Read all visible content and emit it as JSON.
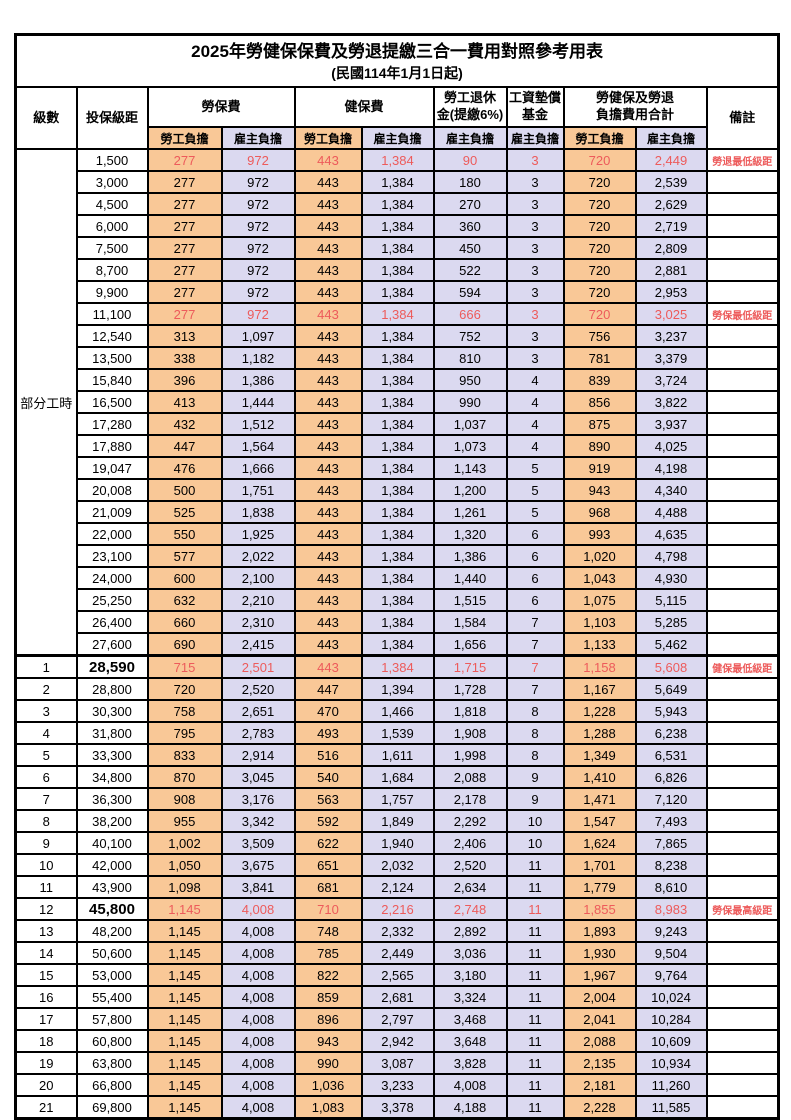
{
  "title": "2025年勞健保保費及勞退提繳三合一費用對照參考用表",
  "subtitle": "(民國114年1月1日起)",
  "colors": {
    "employee_cell_bg": "#F9C897",
    "employer_cell_bg": "#DBD9F0",
    "highlight_text": "#ED5B5B",
    "border": "#000000",
    "background": "#FFFFFF"
  },
  "header": {
    "level": "級數",
    "bracket": "投保級距",
    "labor_insurance": "勞保費",
    "health_insurance": "健保費",
    "pension_line1": "勞工退休",
    "pension_line2": "金(提繳6%)",
    "wage_fund_line1": "工資墊償",
    "wage_fund_line2": "基金",
    "total_line1": "勞健保及勞退",
    "total_line2": "負擔費用合計",
    "remark": "備註",
    "employee_burden": "勞工負擔",
    "employer_burden": "雇主負擔"
  },
  "part_time_label": "部分工時",
  "part_time_row_count": 23,
  "rows": [
    {
      "level": "",
      "bracket": "1,500",
      "labor_emp": "277",
      "labor_er": "972",
      "health_emp": "443",
      "health_er": "1,384",
      "pension_er": "90",
      "fund_er": "3",
      "total_emp": "720",
      "total_er": "2,449",
      "remark": "勞退最低級距",
      "highlight": true,
      "bracket_bold": false
    },
    {
      "level": "",
      "bracket": "3,000",
      "labor_emp": "277",
      "labor_er": "972",
      "health_emp": "443",
      "health_er": "1,384",
      "pension_er": "180",
      "fund_er": "3",
      "total_emp": "720",
      "total_er": "2,539",
      "remark": "",
      "highlight": false,
      "bracket_bold": false
    },
    {
      "level": "",
      "bracket": "4,500",
      "labor_emp": "277",
      "labor_er": "972",
      "health_emp": "443",
      "health_er": "1,384",
      "pension_er": "270",
      "fund_er": "3",
      "total_emp": "720",
      "total_er": "2,629",
      "remark": "",
      "highlight": false,
      "bracket_bold": false
    },
    {
      "level": "",
      "bracket": "6,000",
      "labor_emp": "277",
      "labor_er": "972",
      "health_emp": "443",
      "health_er": "1,384",
      "pension_er": "360",
      "fund_er": "3",
      "total_emp": "720",
      "total_er": "2,719",
      "remark": "",
      "highlight": false,
      "bracket_bold": false
    },
    {
      "level": "",
      "bracket": "7,500",
      "labor_emp": "277",
      "labor_er": "972",
      "health_emp": "443",
      "health_er": "1,384",
      "pension_er": "450",
      "fund_er": "3",
      "total_emp": "720",
      "total_er": "2,809",
      "remark": "",
      "highlight": false,
      "bracket_bold": false
    },
    {
      "level": "",
      "bracket": "8,700",
      "labor_emp": "277",
      "labor_er": "972",
      "health_emp": "443",
      "health_er": "1,384",
      "pension_er": "522",
      "fund_er": "3",
      "total_emp": "720",
      "total_er": "2,881",
      "remark": "",
      "highlight": false,
      "bracket_bold": false
    },
    {
      "level": "",
      "bracket": "9,900",
      "labor_emp": "277",
      "labor_er": "972",
      "health_emp": "443",
      "health_er": "1,384",
      "pension_er": "594",
      "fund_er": "3",
      "total_emp": "720",
      "total_er": "2,953",
      "remark": "",
      "highlight": false,
      "bracket_bold": false
    },
    {
      "level": "",
      "bracket": "11,100",
      "labor_emp": "277",
      "labor_er": "972",
      "health_emp": "443",
      "health_er": "1,384",
      "pension_er": "666",
      "fund_er": "3",
      "total_emp": "720",
      "total_er": "3,025",
      "remark": "勞保最低級距",
      "highlight": true,
      "bracket_bold": false
    },
    {
      "level": "",
      "bracket": "12,540",
      "labor_emp": "313",
      "labor_er": "1,097",
      "health_emp": "443",
      "health_er": "1,384",
      "pension_er": "752",
      "fund_er": "3",
      "total_emp": "756",
      "total_er": "3,237",
      "remark": "",
      "highlight": false,
      "bracket_bold": false
    },
    {
      "level": "",
      "bracket": "13,500",
      "labor_emp": "338",
      "labor_er": "1,182",
      "health_emp": "443",
      "health_er": "1,384",
      "pension_er": "810",
      "fund_er": "3",
      "total_emp": "781",
      "total_er": "3,379",
      "remark": "",
      "highlight": false,
      "bracket_bold": false
    },
    {
      "level": "",
      "bracket": "15,840",
      "labor_emp": "396",
      "labor_er": "1,386",
      "health_emp": "443",
      "health_er": "1,384",
      "pension_er": "950",
      "fund_er": "4",
      "total_emp": "839",
      "total_er": "3,724",
      "remark": "",
      "highlight": false,
      "bracket_bold": false
    },
    {
      "level": "",
      "bracket": "16,500",
      "labor_emp": "413",
      "labor_er": "1,444",
      "health_emp": "443",
      "health_er": "1,384",
      "pension_er": "990",
      "fund_er": "4",
      "total_emp": "856",
      "total_er": "3,822",
      "remark": "",
      "highlight": false,
      "bracket_bold": false
    },
    {
      "level": "",
      "bracket": "17,280",
      "labor_emp": "432",
      "labor_er": "1,512",
      "health_emp": "443",
      "health_er": "1,384",
      "pension_er": "1,037",
      "fund_er": "4",
      "total_emp": "875",
      "total_er": "3,937",
      "remark": "",
      "highlight": false,
      "bracket_bold": false
    },
    {
      "level": "",
      "bracket": "17,880",
      "labor_emp": "447",
      "labor_er": "1,564",
      "health_emp": "443",
      "health_er": "1,384",
      "pension_er": "1,073",
      "fund_er": "4",
      "total_emp": "890",
      "total_er": "4,025",
      "remark": "",
      "highlight": false,
      "bracket_bold": false
    },
    {
      "level": "",
      "bracket": "19,047",
      "labor_emp": "476",
      "labor_er": "1,666",
      "health_emp": "443",
      "health_er": "1,384",
      "pension_er": "1,143",
      "fund_er": "5",
      "total_emp": "919",
      "total_er": "4,198",
      "remark": "",
      "highlight": false,
      "bracket_bold": false
    },
    {
      "level": "",
      "bracket": "20,008",
      "labor_emp": "500",
      "labor_er": "1,751",
      "health_emp": "443",
      "health_er": "1,384",
      "pension_er": "1,200",
      "fund_er": "5",
      "total_emp": "943",
      "total_er": "4,340",
      "remark": "",
      "highlight": false,
      "bracket_bold": false
    },
    {
      "level": "",
      "bracket": "21,009",
      "labor_emp": "525",
      "labor_er": "1,838",
      "health_emp": "443",
      "health_er": "1,384",
      "pension_er": "1,261",
      "fund_er": "5",
      "total_emp": "968",
      "total_er": "4,488",
      "remark": "",
      "highlight": false,
      "bracket_bold": false
    },
    {
      "level": "",
      "bracket": "22,000",
      "labor_emp": "550",
      "labor_er": "1,925",
      "health_emp": "443",
      "health_er": "1,384",
      "pension_er": "1,320",
      "fund_er": "6",
      "total_emp": "993",
      "total_er": "4,635",
      "remark": "",
      "highlight": false,
      "bracket_bold": false
    },
    {
      "level": "",
      "bracket": "23,100",
      "labor_emp": "577",
      "labor_er": "2,022",
      "health_emp": "443",
      "health_er": "1,384",
      "pension_er": "1,386",
      "fund_er": "6",
      "total_emp": "1,020",
      "total_er": "4,798",
      "remark": "",
      "highlight": false,
      "bracket_bold": false
    },
    {
      "level": "",
      "bracket": "24,000",
      "labor_emp": "600",
      "labor_er": "2,100",
      "health_emp": "443",
      "health_er": "1,384",
      "pension_er": "1,440",
      "fund_er": "6",
      "total_emp": "1,043",
      "total_er": "4,930",
      "remark": "",
      "highlight": false,
      "bracket_bold": false
    },
    {
      "level": "",
      "bracket": "25,250",
      "labor_emp": "632",
      "labor_er": "2,210",
      "health_emp": "443",
      "health_er": "1,384",
      "pension_er": "1,515",
      "fund_er": "6",
      "total_emp": "1,075",
      "total_er": "5,115",
      "remark": "",
      "highlight": false,
      "bracket_bold": false
    },
    {
      "level": "",
      "bracket": "26,400",
      "labor_emp": "660",
      "labor_er": "2,310",
      "health_emp": "443",
      "health_er": "1,384",
      "pension_er": "1,584",
      "fund_er": "7",
      "total_emp": "1,103",
      "total_er": "5,285",
      "remark": "",
      "highlight": false,
      "bracket_bold": false
    },
    {
      "level": "",
      "bracket": "27,600",
      "labor_emp": "690",
      "labor_er": "2,415",
      "health_emp": "443",
      "health_er": "1,384",
      "pension_er": "1,656",
      "fund_er": "7",
      "total_emp": "1,133",
      "total_er": "5,462",
      "remark": "",
      "highlight": false,
      "bracket_bold": false
    },
    {
      "level": "1",
      "bracket": "28,590",
      "labor_emp": "715",
      "labor_er": "2,501",
      "health_emp": "443",
      "health_er": "1,384",
      "pension_er": "1,715",
      "fund_er": "7",
      "total_emp": "1,158",
      "total_er": "5,608",
      "remark": "健保最低級距",
      "highlight": true,
      "bracket_bold": true
    },
    {
      "level": "2",
      "bracket": "28,800",
      "labor_emp": "720",
      "labor_er": "2,520",
      "health_emp": "447",
      "health_er": "1,394",
      "pension_er": "1,728",
      "fund_er": "7",
      "total_emp": "1,167",
      "total_er": "5,649",
      "remark": "",
      "highlight": false,
      "bracket_bold": false
    },
    {
      "level": "3",
      "bracket": "30,300",
      "labor_emp": "758",
      "labor_er": "2,651",
      "health_emp": "470",
      "health_er": "1,466",
      "pension_er": "1,818",
      "fund_er": "8",
      "total_emp": "1,228",
      "total_er": "5,943",
      "remark": "",
      "highlight": false,
      "bracket_bold": false
    },
    {
      "level": "4",
      "bracket": "31,800",
      "labor_emp": "795",
      "labor_er": "2,783",
      "health_emp": "493",
      "health_er": "1,539",
      "pension_er": "1,908",
      "fund_er": "8",
      "total_emp": "1,288",
      "total_er": "6,238",
      "remark": "",
      "highlight": false,
      "bracket_bold": false
    },
    {
      "level": "5",
      "bracket": "33,300",
      "labor_emp": "833",
      "labor_er": "2,914",
      "health_emp": "516",
      "health_er": "1,611",
      "pension_er": "1,998",
      "fund_er": "8",
      "total_emp": "1,349",
      "total_er": "6,531",
      "remark": "",
      "highlight": false,
      "bracket_bold": false
    },
    {
      "level": "6",
      "bracket": "34,800",
      "labor_emp": "870",
      "labor_er": "3,045",
      "health_emp": "540",
      "health_er": "1,684",
      "pension_er": "2,088",
      "fund_er": "9",
      "total_emp": "1,410",
      "total_er": "6,826",
      "remark": "",
      "highlight": false,
      "bracket_bold": false
    },
    {
      "level": "7",
      "bracket": "36,300",
      "labor_emp": "908",
      "labor_er": "3,176",
      "health_emp": "563",
      "health_er": "1,757",
      "pension_er": "2,178",
      "fund_er": "9",
      "total_emp": "1,471",
      "total_er": "7,120",
      "remark": "",
      "highlight": false,
      "bracket_bold": false
    },
    {
      "level": "8",
      "bracket": "38,200",
      "labor_emp": "955",
      "labor_er": "3,342",
      "health_emp": "592",
      "health_er": "1,849",
      "pension_er": "2,292",
      "fund_er": "10",
      "total_emp": "1,547",
      "total_er": "7,493",
      "remark": "",
      "highlight": false,
      "bracket_bold": false
    },
    {
      "level": "9",
      "bracket": "40,100",
      "labor_emp": "1,002",
      "labor_er": "3,509",
      "health_emp": "622",
      "health_er": "1,940",
      "pension_er": "2,406",
      "fund_er": "10",
      "total_emp": "1,624",
      "total_er": "7,865",
      "remark": "",
      "highlight": false,
      "bracket_bold": false
    },
    {
      "level": "10",
      "bracket": "42,000",
      "labor_emp": "1,050",
      "labor_er": "3,675",
      "health_emp": "651",
      "health_er": "2,032",
      "pension_er": "2,520",
      "fund_er": "11",
      "total_emp": "1,701",
      "total_er": "8,238",
      "remark": "",
      "highlight": false,
      "bracket_bold": false
    },
    {
      "level": "11",
      "bracket": "43,900",
      "labor_emp": "1,098",
      "labor_er": "3,841",
      "health_emp": "681",
      "health_er": "2,124",
      "pension_er": "2,634",
      "fund_er": "11",
      "total_emp": "1,779",
      "total_er": "8,610",
      "remark": "",
      "highlight": false,
      "bracket_bold": false
    },
    {
      "level": "12",
      "bracket": "45,800",
      "labor_emp": "1,145",
      "labor_er": "4,008",
      "health_emp": "710",
      "health_er": "2,216",
      "pension_er": "2,748",
      "fund_er": "11",
      "total_emp": "1,855",
      "total_er": "8,983",
      "remark": "勞保最高級距",
      "highlight": true,
      "bracket_bold": true
    },
    {
      "level": "13",
      "bracket": "48,200",
      "labor_emp": "1,145",
      "labor_er": "4,008",
      "health_emp": "748",
      "health_er": "2,332",
      "pension_er": "2,892",
      "fund_er": "11",
      "total_emp": "1,893",
      "total_er": "9,243",
      "remark": "",
      "highlight": false,
      "bracket_bold": false
    },
    {
      "level": "14",
      "bracket": "50,600",
      "labor_emp": "1,145",
      "labor_er": "4,008",
      "health_emp": "785",
      "health_er": "2,449",
      "pension_er": "3,036",
      "fund_er": "11",
      "total_emp": "1,930",
      "total_er": "9,504",
      "remark": "",
      "highlight": false,
      "bracket_bold": false
    },
    {
      "level": "15",
      "bracket": "53,000",
      "labor_emp": "1,145",
      "labor_er": "4,008",
      "health_emp": "822",
      "health_er": "2,565",
      "pension_er": "3,180",
      "fund_er": "11",
      "total_emp": "1,967",
      "total_er": "9,764",
      "remark": "",
      "highlight": false,
      "bracket_bold": false
    },
    {
      "level": "16",
      "bracket": "55,400",
      "labor_emp": "1,145",
      "labor_er": "4,008",
      "health_emp": "859",
      "health_er": "2,681",
      "pension_er": "3,324",
      "fund_er": "11",
      "total_emp": "2,004",
      "total_er": "10,024",
      "remark": "",
      "highlight": false,
      "bracket_bold": false
    },
    {
      "level": "17",
      "bracket": "57,800",
      "labor_emp": "1,145",
      "labor_er": "4,008",
      "health_emp": "896",
      "health_er": "2,797",
      "pension_er": "3,468",
      "fund_er": "11",
      "total_emp": "2,041",
      "total_er": "10,284",
      "remark": "",
      "highlight": false,
      "bracket_bold": false
    },
    {
      "level": "18",
      "bracket": "60,800",
      "labor_emp": "1,145",
      "labor_er": "4,008",
      "health_emp": "943",
      "health_er": "2,942",
      "pension_er": "3,648",
      "fund_er": "11",
      "total_emp": "2,088",
      "total_er": "10,609",
      "remark": "",
      "highlight": false,
      "bracket_bold": false
    },
    {
      "level": "19",
      "bracket": "63,800",
      "labor_emp": "1,145",
      "labor_er": "4,008",
      "health_emp": "990",
      "health_er": "3,087",
      "pension_er": "3,828",
      "fund_er": "11",
      "total_emp": "2,135",
      "total_er": "10,934",
      "remark": "",
      "highlight": false,
      "bracket_bold": false
    },
    {
      "level": "20",
      "bracket": "66,800",
      "labor_emp": "1,145",
      "labor_er": "4,008",
      "health_emp": "1,036",
      "health_er": "3,233",
      "pension_er": "4,008",
      "fund_er": "11",
      "total_emp": "2,181",
      "total_er": "11,260",
      "remark": "",
      "highlight": false,
      "bracket_bold": false
    },
    {
      "level": "21",
      "bracket": "69,800",
      "labor_emp": "1,145",
      "labor_er": "4,008",
      "health_emp": "1,083",
      "health_er": "3,378",
      "pension_er": "4,188",
      "fund_er": "11",
      "total_emp": "2,228",
      "total_er": "11,585",
      "remark": "",
      "highlight": false,
      "bracket_bold": false
    }
  ]
}
